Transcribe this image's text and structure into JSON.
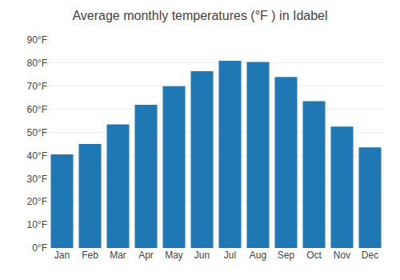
{
  "chart_data": {
    "type": "bar",
    "title": "Average monthly temperatures (°F ) in Idabel",
    "categories": [
      "Jan",
      "Feb",
      "Mar",
      "Apr",
      "May",
      "Jun",
      "Jul",
      "Aug",
      "Sep",
      "Oct",
      "Nov",
      "Dec"
    ],
    "values": [
      40.5,
      45.0,
      53.5,
      62.0,
      70.0,
      76.5,
      81.0,
      80.5,
      74.0,
      63.5,
      52.5,
      43.5
    ],
    "ylim": [
      0,
      90
    ],
    "yticks": [
      {
        "value": 0,
        "label": "0°F"
      },
      {
        "value": 10,
        "label": "10°F"
      },
      {
        "value": 20,
        "label": "20°F"
      },
      {
        "value": 30,
        "label": "30°F"
      },
      {
        "value": 40,
        "label": "40°F"
      },
      {
        "value": 50,
        "label": "50°F"
      },
      {
        "value": 60,
        "label": "60°F"
      },
      {
        "value": 70,
        "label": "70°F"
      },
      {
        "value": 80,
        "label": "80°F"
      },
      {
        "value": 90,
        "label": "90°F"
      }
    ],
    "grid": true
  }
}
